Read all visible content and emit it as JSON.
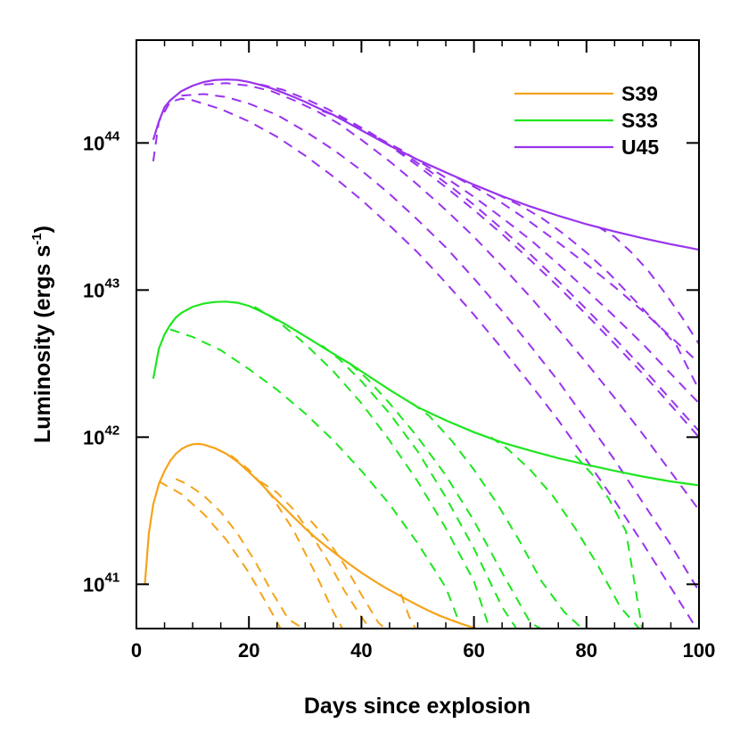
{
  "chart_data": {
    "type": "line",
    "xlabel": "Days since explosion",
    "ylabel": "Luminosity (ergs s",
    "ylabel_sup": "-1",
    "ylabel_end": ")",
    "xlim": [
      0,
      100
    ],
    "ylim": [
      5e+40,
      5e+44
    ],
    "yscale": "log",
    "xticks": [
      0,
      20,
      40,
      60,
      80,
      100
    ],
    "yticks": [
      {
        "value": 1e+41,
        "base": "10",
        "exp": "41"
      },
      {
        "value": 1e+42,
        "base": "10",
        "exp": "42"
      },
      {
        "value": 1e+43,
        "base": "10",
        "exp": "43"
      },
      {
        "value": 1e+44,
        "base": "10",
        "exp": "44"
      }
    ],
    "legend_position": "top-right",
    "series": [
      {
        "name": "S39",
        "color": "#f5a31a",
        "style": "solid",
        "x": [
          1.5,
          2.2,
          3,
          4,
          5,
          6,
          7,
          8,
          9,
          10,
          11,
          12,
          14,
          16,
          18,
          20,
          22,
          24,
          26,
          28,
          30,
          32,
          34,
          36,
          38,
          40,
          42,
          44,
          46,
          48,
          50,
          52,
          54,
          56,
          58,
          60,
          62,
          63
        ],
        "y": [
          1e+41,
          2.2e+41,
          3.5e+41,
          4.8e+41,
          5.9e+41,
          6.9e+41,
          7.7e+41,
          8.3e+41,
          8.7e+41,
          8.95e+41,
          9e+41,
          8.9e+41,
          8.4e+41,
          7.7e+41,
          6.8e+41,
          5.8e+41,
          4.9e+41,
          4.05e+41,
          3.4e+41,
          2.85e+41,
          2.4e+41,
          2.05e+41,
          1.78e+41,
          1.55e+41,
          1.36e+41,
          1.2e+41,
          1.07e+41,
          9.6e+40,
          8.7e+40,
          7.9e+40,
          7.2e+40,
          6.6e+40,
          6.1e+40,
          5.7e+40,
          5.35e+40,
          5.05e+40,
          4.8e+40,
          4.7e+40
        ]
      },
      {
        "name": "S33",
        "color": "#1ee61e",
        "style": "solid",
        "x": [
          3,
          4,
          5,
          6,
          7,
          8,
          10,
          12,
          14,
          16,
          18,
          20,
          22,
          24,
          26,
          28,
          30,
          32,
          34,
          36,
          38,
          40,
          45,
          50,
          55,
          60,
          65,
          70,
          75,
          80,
          85,
          90,
          95,
          100
        ],
        "y": [
          2.5e+42,
          4e+42,
          5e+42,
          5.8e+42,
          6.5e+42,
          7e+42,
          7.7e+42,
          8.1e+42,
          8.3e+42,
          8.35e+42,
          8.2e+42,
          7.8e+42,
          7.2e+42,
          6.6e+42,
          6e+42,
          5.4e+42,
          4.85e+42,
          4.35e+42,
          3.9e+42,
          3.5e+42,
          3.15e+42,
          2.8e+42,
          2.1e+42,
          1.6e+42,
          1.3e+42,
          1.08e+42,
          9.2e+41,
          8.1e+41,
          7.2e+41,
          6.5e+41,
          5.9e+41,
          5.4e+41,
          5e+41,
          4.7e+41
        ]
      },
      {
        "name": "U45",
        "color": "#9933ee",
        "style": "solid",
        "x": [
          3,
          4,
          5,
          6,
          8,
          10,
          12,
          14,
          16,
          18,
          20,
          22,
          24,
          26,
          28,
          30,
          32,
          35,
          40,
          45,
          50,
          55,
          60,
          65,
          70,
          75,
          80,
          85,
          90,
          95,
          100
        ],
        "y": [
          1.05e+44,
          1.4e+44,
          1.75e+44,
          1.95e+44,
          2.25e+44,
          2.45e+44,
          2.6e+44,
          2.68e+44,
          2.7e+44,
          2.68e+44,
          2.6e+44,
          2.48e+44,
          2.35e+44,
          2.2e+44,
          2.05e+44,
          1.9e+44,
          1.75e+44,
          1.55e+44,
          1.22e+44,
          9.6e+43,
          7.7e+43,
          6.3e+43,
          5.2e+43,
          4.35e+43,
          3.7e+43,
          3.2e+43,
          2.8e+43,
          2.5e+43,
          2.25e+43,
          2.05e+43,
          1.88e+43
        ]
      }
    ],
    "dashed_families": [
      {
        "color": "#f5a31a",
        "curves": [
          {
            "x": [
              4,
              8,
              12,
              16,
              20,
              24,
              26
            ],
            "y": [
              5e+41,
              4.1e+41,
              3e+41,
              2e+41,
              1.2e+41,
              6.5e+40,
              4.7e+40
            ]
          },
          {
            "x": [
              7,
              9,
              12,
              15,
              18,
              21,
              24,
              27,
              30,
              31
            ],
            "y": [
              5.2e+41,
              4.8e+41,
              4e+41,
              3.1e+41,
              2.2e+41,
              1.45e+41,
              9e+40,
              5.8e+40,
              4.9e+40,
              4.7e+40
            ]
          },
          {
            "x": [
              14,
              17,
              20,
              24,
              28,
              32,
              35,
              37
            ],
            "y": [
              8.4e+41,
              7.4e+41,
              6e+41,
              4e+41,
              2.3e+41,
              1.15e+41,
              6.5e+40,
              4.7e+40
            ]
          },
          {
            "x": [
              22,
              25,
              28,
              31,
              34,
              37,
              40,
              42
            ],
            "y": [
              5e+41,
              4.2e+41,
              3.2e+41,
              2.2e+41,
              1.45e+41,
              9e+40,
              6e+40,
              4.7e+40
            ]
          },
          {
            "x": [
              31,
              34,
              37,
              40,
              43,
              45
            ],
            "y": [
              2.7e+41,
              2e+41,
              1.35e+41,
              8.5e+40,
              5.5e+40,
              4.7e+40
            ]
          },
          {
            "x": [
              47,
              48.5,
              50
            ],
            "y": [
              8.6e+40,
              6e+40,
              4.7e+40
            ]
          }
        ]
      },
      {
        "color": "#1ee61e",
        "curves": [
          {
            "x": [
              6,
              10,
              15,
              20,
              25,
              30,
              35,
              40,
              45,
              50,
              55,
              57
            ],
            "y": [
              5.4e+42,
              4.8e+42,
              3.9e+42,
              2.9e+42,
              2.1e+42,
              1.45e+42,
              9.5e+41,
              5.9e+41,
              3.5e+41,
              1.9e+41,
              9.5e+40,
              6e+40
            ]
          },
          {
            "x": [
              21,
              25,
              30,
              35,
              40,
              45,
              50,
              55,
              60,
              63
            ],
            "y": [
              7.7e+42,
              6.2e+42,
              4.3e+42,
              2.8e+42,
              1.7e+42,
              9.5e+41,
              5e+41,
              2.4e+41,
              1.05e+41,
              4.7e+40
            ]
          },
          {
            "x": [
              33,
              36,
              40,
              45,
              50,
              55,
              60,
              65,
              68
            ],
            "y": [
              4.2e+42,
              3.4e+42,
              2.4e+42,
              1.45e+42,
              8e+41,
              3.9e+41,
              1.75e+41,
              7e+40,
              4.7e+40
            ]
          },
          {
            "x": [
              38,
              41,
              45,
              50,
              55,
              60,
              65,
              70,
              73
            ],
            "y": [
              3.15e+42,
              2.5e+42,
              1.7e+42,
              1e+42,
              5.5e+41,
              2.7e+41,
              1.2e+41,
              5.5e+40,
              4.7e+40
            ]
          },
          {
            "x": [
              49,
              52,
              56,
              60,
              64,
              68,
              72,
              76,
              80
            ],
            "y": [
              1.7e+42,
              1.4e+42,
              9.5e+41,
              6e+41,
              3.6e+41,
              2e+41,
              1.05e+41,
              6.5e+40,
              4.7e+40
            ]
          },
          {
            "x": [
              63,
              66,
              70,
              74,
              78,
              82,
              86,
              90
            ],
            "y": [
              1e+42,
              8.3e+41,
              6e+41,
              4e+41,
              2.4e+41,
              1.35e+41,
              7e+40,
              4.7e+40
            ]
          },
          {
            "x": [
              78,
              81,
              84,
              87,
              90
            ],
            "y": [
              7.5e+41,
              5.6e+41,
              3.8e+41,
              2.3e+41,
              4.7e+40
            ]
          }
        ]
      },
      {
        "color": "#9933ee",
        "curves": [
          {
            "x": [
              3,
              4,
              6,
              8,
              10,
              15,
              20,
              25,
              30,
              35,
              40,
              45,
              50,
              55,
              60,
              65,
              70,
              75,
              80,
              85,
              90,
              95,
              100
            ],
            "y": [
              7.5e+43,
              1.4e+44,
              1.9e+44,
              2e+44,
              1.95e+44,
              1.7e+44,
              1.4e+44,
              1.1e+44,
              8.2e+43,
              5.9e+43,
              4.1e+43,
              2.75e+43,
              1.8e+43,
              1.12e+43,
              6.8e+42,
              4e+42,
              2.3e+42,
              1.3e+42,
              7e+41,
              3.7e+41,
              1.9e+41,
              9.5e+40,
              4.7e+40
            ]
          },
          {
            "x": [
              8,
              12,
              16,
              20,
              25,
              30,
              35,
              40,
              45,
              50,
              55,
              60,
              65,
              70,
              75,
              80,
              85,
              90,
              95,
              100
            ],
            "y": [
              2.1e+44,
              2.15e+44,
              2.05e+44,
              1.85e+44,
              1.55e+44,
              1.2e+44,
              9e+43,
              6.5e+43,
              4.5e+43,
              3e+43,
              1.95e+43,
              1.2e+43,
              7.2e+42,
              4.2e+42,
              2.4e+42,
              1.3e+42,
              7e+41,
              3.6e+41,
              1.85e+41,
              9e+40
            ]
          },
          {
            "x": [
              12,
              16,
              20,
              24,
              28,
              32,
              36,
              40,
              45,
              50,
              55,
              60,
              65,
              70,
              75,
              80,
              85,
              90,
              95,
              100
            ],
            "y": [
              2.5e+44,
              2.55e+44,
              2.45e+44,
              2.25e+44,
              1.95e+44,
              1.65e+44,
              1.35e+44,
              1.05e+44,
              7.5e+43,
              5.2e+43,
              3.5e+43,
              2.3e+43,
              1.45e+43,
              9e+42,
              5.4e+42,
              3.2e+42,
              1.85e+42,
              1.05e+42,
              5.8e+41,
              3.2e+41
            ]
          },
          {
            "x": [
              22,
              26,
              30,
              34,
              38,
              42,
              46,
              50,
              55,
              60,
              65,
              70,
              75,
              80,
              85,
              90,
              95,
              100
            ],
            "y": [
              2.5e+44,
              2.3e+44,
              2e+44,
              1.7e+44,
              1.4e+44,
              1.15e+44,
              9e+43,
              7e+43,
              5e+43,
              3.5e+43,
              2.4e+43,
              1.6e+43,
              1.05e+43,
              6.8e+42,
              4.3e+42,
              2.7e+42,
              1.65e+42,
              1e+42
            ]
          },
          {
            "x": [
              33,
              36,
              40,
              44,
              48,
              52,
              56,
              60,
              65,
              70,
              75,
              80,
              85,
              90,
              95,
              100
            ],
            "y": [
              1.65e+44,
              1.5e+44,
              1.25e+44,
              1.02e+44,
              8.2e+43,
              6.5e+43,
              5e+43,
              3.8e+43,
              2.6e+43,
              1.75e+43,
              1.15e+43,
              7.4e+42,
              4.7e+42,
              2.95e+42,
              1.8e+42,
              1.1e+42
            ]
          },
          {
            "x": [
              43,
              47,
              51,
              55,
              60,
              65,
              70,
              75,
              80,
              85,
              90,
              95,
              100
            ],
            "y": [
              1.08e+44,
              9e+43,
              7.2e+43,
              5.8e+43,
              4.3e+43,
              3.1e+43,
              2.2e+43,
              1.5e+43,
              1e+43,
              6.6e+42,
              4.3e+42,
              2.7e+42,
              1.7e+42
            ]
          },
          {
            "x": [
              57,
              61,
              65,
              70,
              75,
              80,
              85,
              90,
              95,
              100
            ],
            "y": [
              5.8e+43,
              4.8e+43,
              3.9e+43,
              2.9e+43,
              2.1e+43,
              1.5e+43,
              1.05e+43,
              7.2e+42,
              4.8e+42,
              3.2e+42
            ]
          },
          {
            "x": [
              64,
              68,
              72,
              76,
              80,
              84,
              88,
              92,
              96,
              100
            ],
            "y": [
              4.5e+43,
              3.8e+43,
              3.1e+43,
              2.4e+43,
              1.8e+43,
              1.3e+43,
              9e+42,
              6.2e+42,
              4.2e+42,
              2.1e+42
            ]
          },
          {
            "x": [
              82,
              85,
              88,
              91,
              94,
              97,
              100
            ],
            "y": [
              2.7e+43,
              2.3e+43,
              1.8e+43,
              1.35e+43,
              9.5e+42,
              6.5e+42,
              4.3e+42
            ]
          }
        ]
      }
    ]
  }
}
